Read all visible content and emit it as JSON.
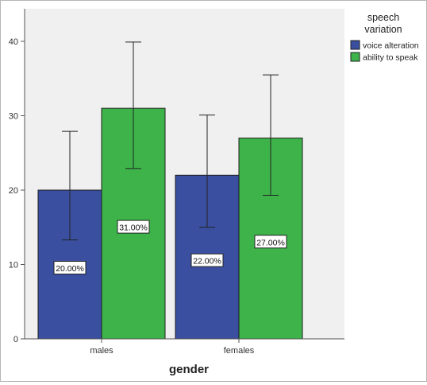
{
  "chart_data": {
    "type": "bar",
    "xlabel": "gender",
    "ylabel": "",
    "categories": [
      "males",
      "females"
    ],
    "ylim": [
      0,
      45
    ],
    "yticks": [
      0,
      10,
      20,
      30,
      40
    ],
    "grid": false,
    "legend": {
      "title_lines": [
        "speech",
        "variation"
      ],
      "placement": "right"
    },
    "series": [
      {
        "name": "voice alteration",
        "color": "#3a4fa0",
        "values": [
          20,
          22
        ],
        "error_low": [
          13.3,
          15.0
        ],
        "error_high": [
          27.9,
          30.1
        ],
        "data_labels": [
          "20.00%",
          "22.00%"
        ]
      },
      {
        "name": "ability to speak",
        "color": "#3db34a",
        "values": [
          31,
          27
        ],
        "error_low": [
          22.9,
          19.3
        ],
        "error_high": [
          39.9,
          35.5
        ],
        "data_labels": [
          "31.00%",
          "27.00%"
        ]
      }
    ]
  }
}
